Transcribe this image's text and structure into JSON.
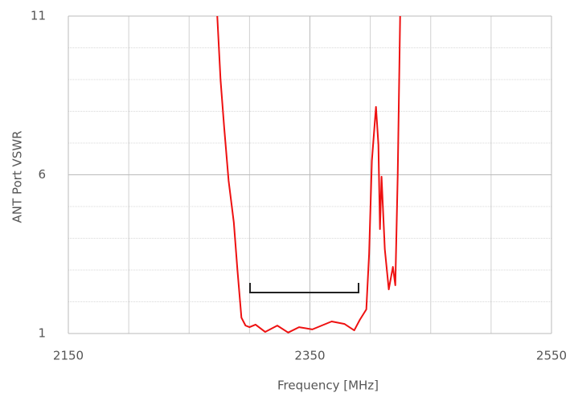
{
  "chart_data": {
    "type": "line",
    "xlabel": "Frequency [MHz]",
    "ylabel": "ANT Port VSWR",
    "xlim": [
      2150,
      2550
    ],
    "ylim": [
      1,
      11
    ],
    "xticks": [
      2150,
      2350,
      2550
    ],
    "yticks": [
      1,
      6,
      11
    ],
    "grid": true,
    "series": [
      {
        "name": "VSWR",
        "color": "#ee1111",
        "x": [
          2273.3,
          2276,
          2279,
          2282.7,
          2287,
          2290,
          2293.3,
          2296.7,
          2300,
          2305,
          2313,
          2323,
          2332,
          2341,
          2352,
          2368,
          2378.7,
          2386.7,
          2391.3,
          2396.7,
          2399,
          2401.3,
          2404.7,
          2406.7,
          2408,
          2409.3,
          2412,
          2415.3,
          2418.7,
          2420.7,
          2422.7,
          2424.7
        ],
        "values": [
          11,
          9,
          7.5,
          5.81,
          4.5,
          3,
          1.5,
          1.25,
          1.2,
          1.28,
          1.05,
          1.25,
          1.03,
          1.2,
          1.13,
          1.38,
          1.3,
          1.1,
          1.43,
          1.76,
          3.5,
          6.44,
          8.14,
          6.95,
          4.29,
          5.94,
          3.66,
          2.39,
          3.1,
          2.52,
          6,
          11
        ]
      }
    ]
  }
}
